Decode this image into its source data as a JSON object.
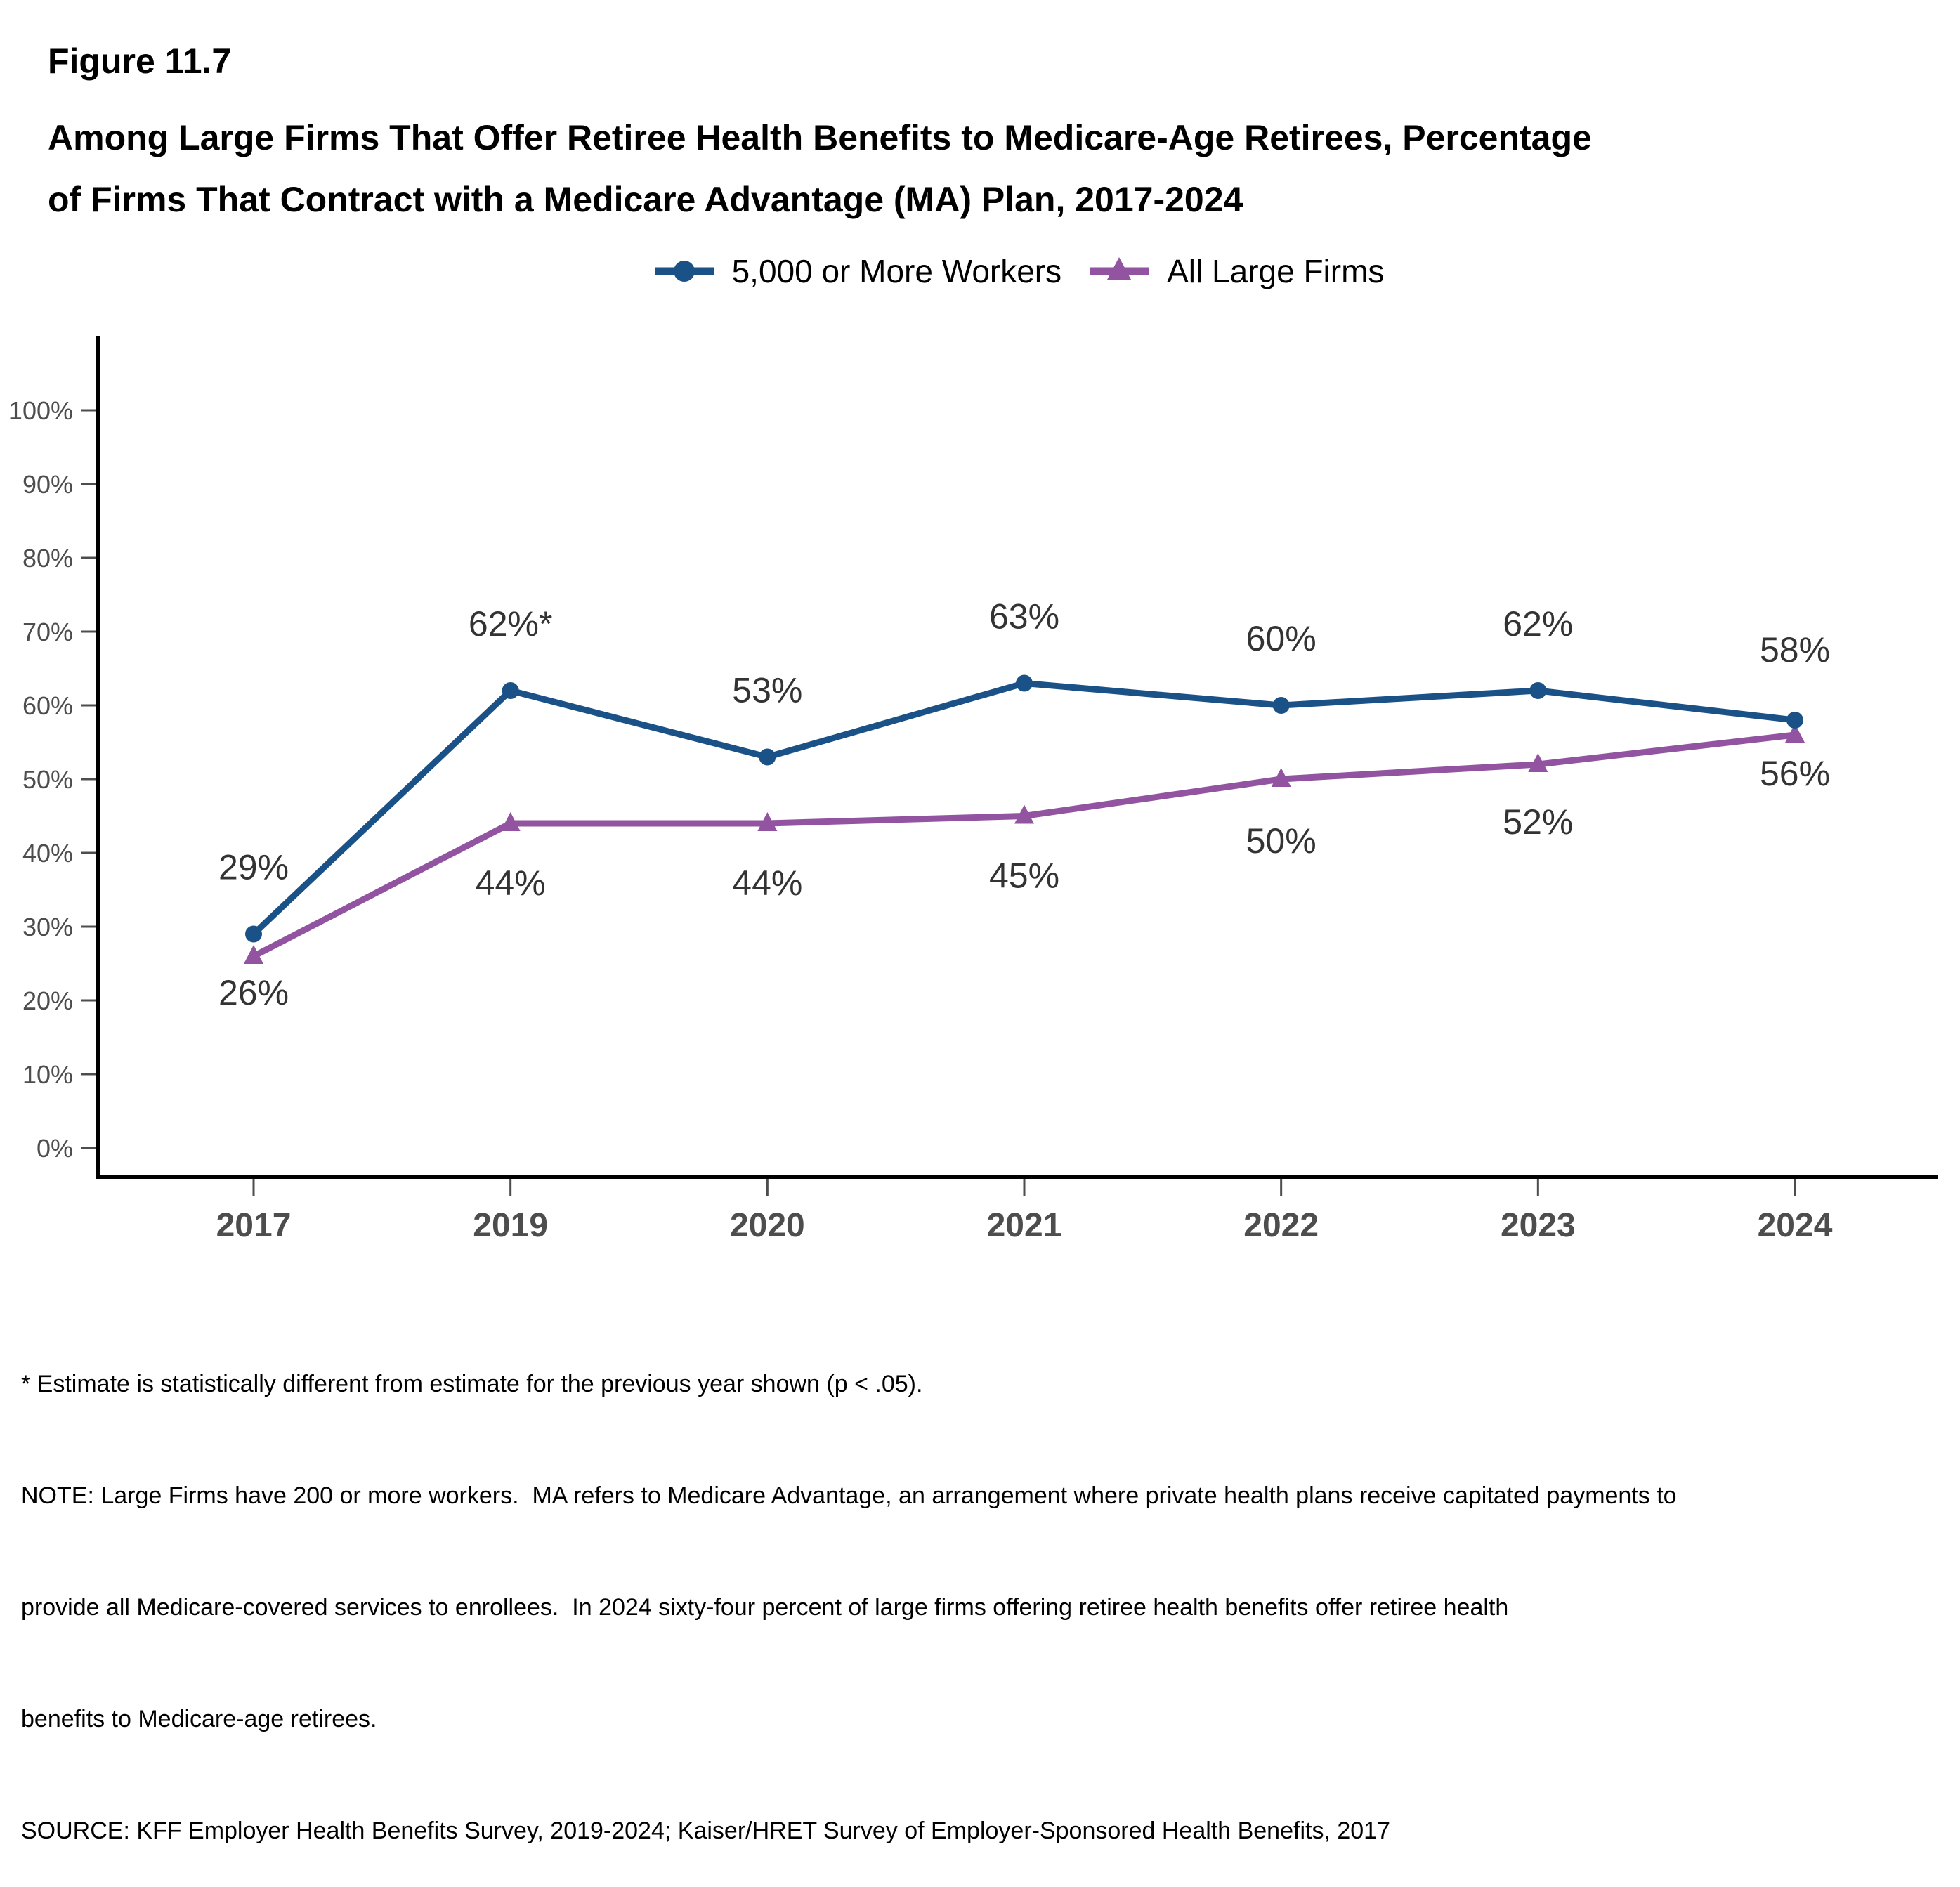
{
  "figure_label": "Figure 11.7",
  "title_lines": [
    "Among Large Firms That Offer Retiree Health Benefits to Medicare-Age Retirees, Percentage",
    "of Firms That Contract with a Medicare Advantage (MA) Plan, 2017-2024"
  ],
  "chart_data": {
    "type": "line",
    "categories": [
      "2017",
      "2019",
      "2020",
      "2021",
      "2022",
      "2023",
      "2024"
    ],
    "series": [
      {
        "name": "5,000 or More Workers",
        "color": "#1A5288",
        "marker": "circle",
        "values": [
          29,
          62,
          53,
          63,
          60,
          62,
          58
        ],
        "point_labels": [
          "29%",
          "62%*",
          "53%",
          "63%",
          "60%",
          "62%",
          "58%"
        ],
        "label_dy": [
          -95,
          -95,
          -95,
          -95,
          -95,
          -95,
          -100
        ]
      },
      {
        "name": "All Large Firms",
        "color": "#9254A0",
        "marker": "triangle",
        "values": [
          26,
          44,
          44,
          45,
          50,
          52,
          56
        ],
        "point_labels": [
          "26%",
          "44%",
          "44%",
          "45%",
          "50%",
          "52%",
          "56%"
        ],
        "label_dy": [
          52,
          85,
          85,
          85,
          88,
          82,
          55
        ]
      }
    ],
    "ylim": [
      0,
      100
    ],
    "ytick_step": 10,
    "ytick_labels": [
      "0%",
      "10%",
      "20%",
      "30%",
      "40%",
      "50%",
      "60%",
      "70%",
      "80%",
      "90%",
      "100%"
    ],
    "xlabel": "",
    "ylabel": "",
    "grid": false,
    "legend_position": "top-center",
    "axis_color": "#000000",
    "tick_color": "#4D4D4D",
    "point_label_color": "#333333"
  },
  "footnotes": {
    "lines": [
      "* Estimate is statistically different from estimate for the previous year shown (p < .05).",
      "NOTE: Large Firms have 200 or more workers.  MA refers to Medicare Advantage, an arrangement where private health plans receive capitated payments to",
      "provide all Medicare-covered services to enrollees.  In 2024 sixty-four percent of large firms offering retiree health benefits offer retiree health",
      "benefits to Medicare-age retirees.",
      "SOURCE: KFF Employer Health Benefits Survey, 2019-2024; Kaiser/HRET Survey of Employer-Sponsored Health Benefits, 2017"
    ]
  }
}
